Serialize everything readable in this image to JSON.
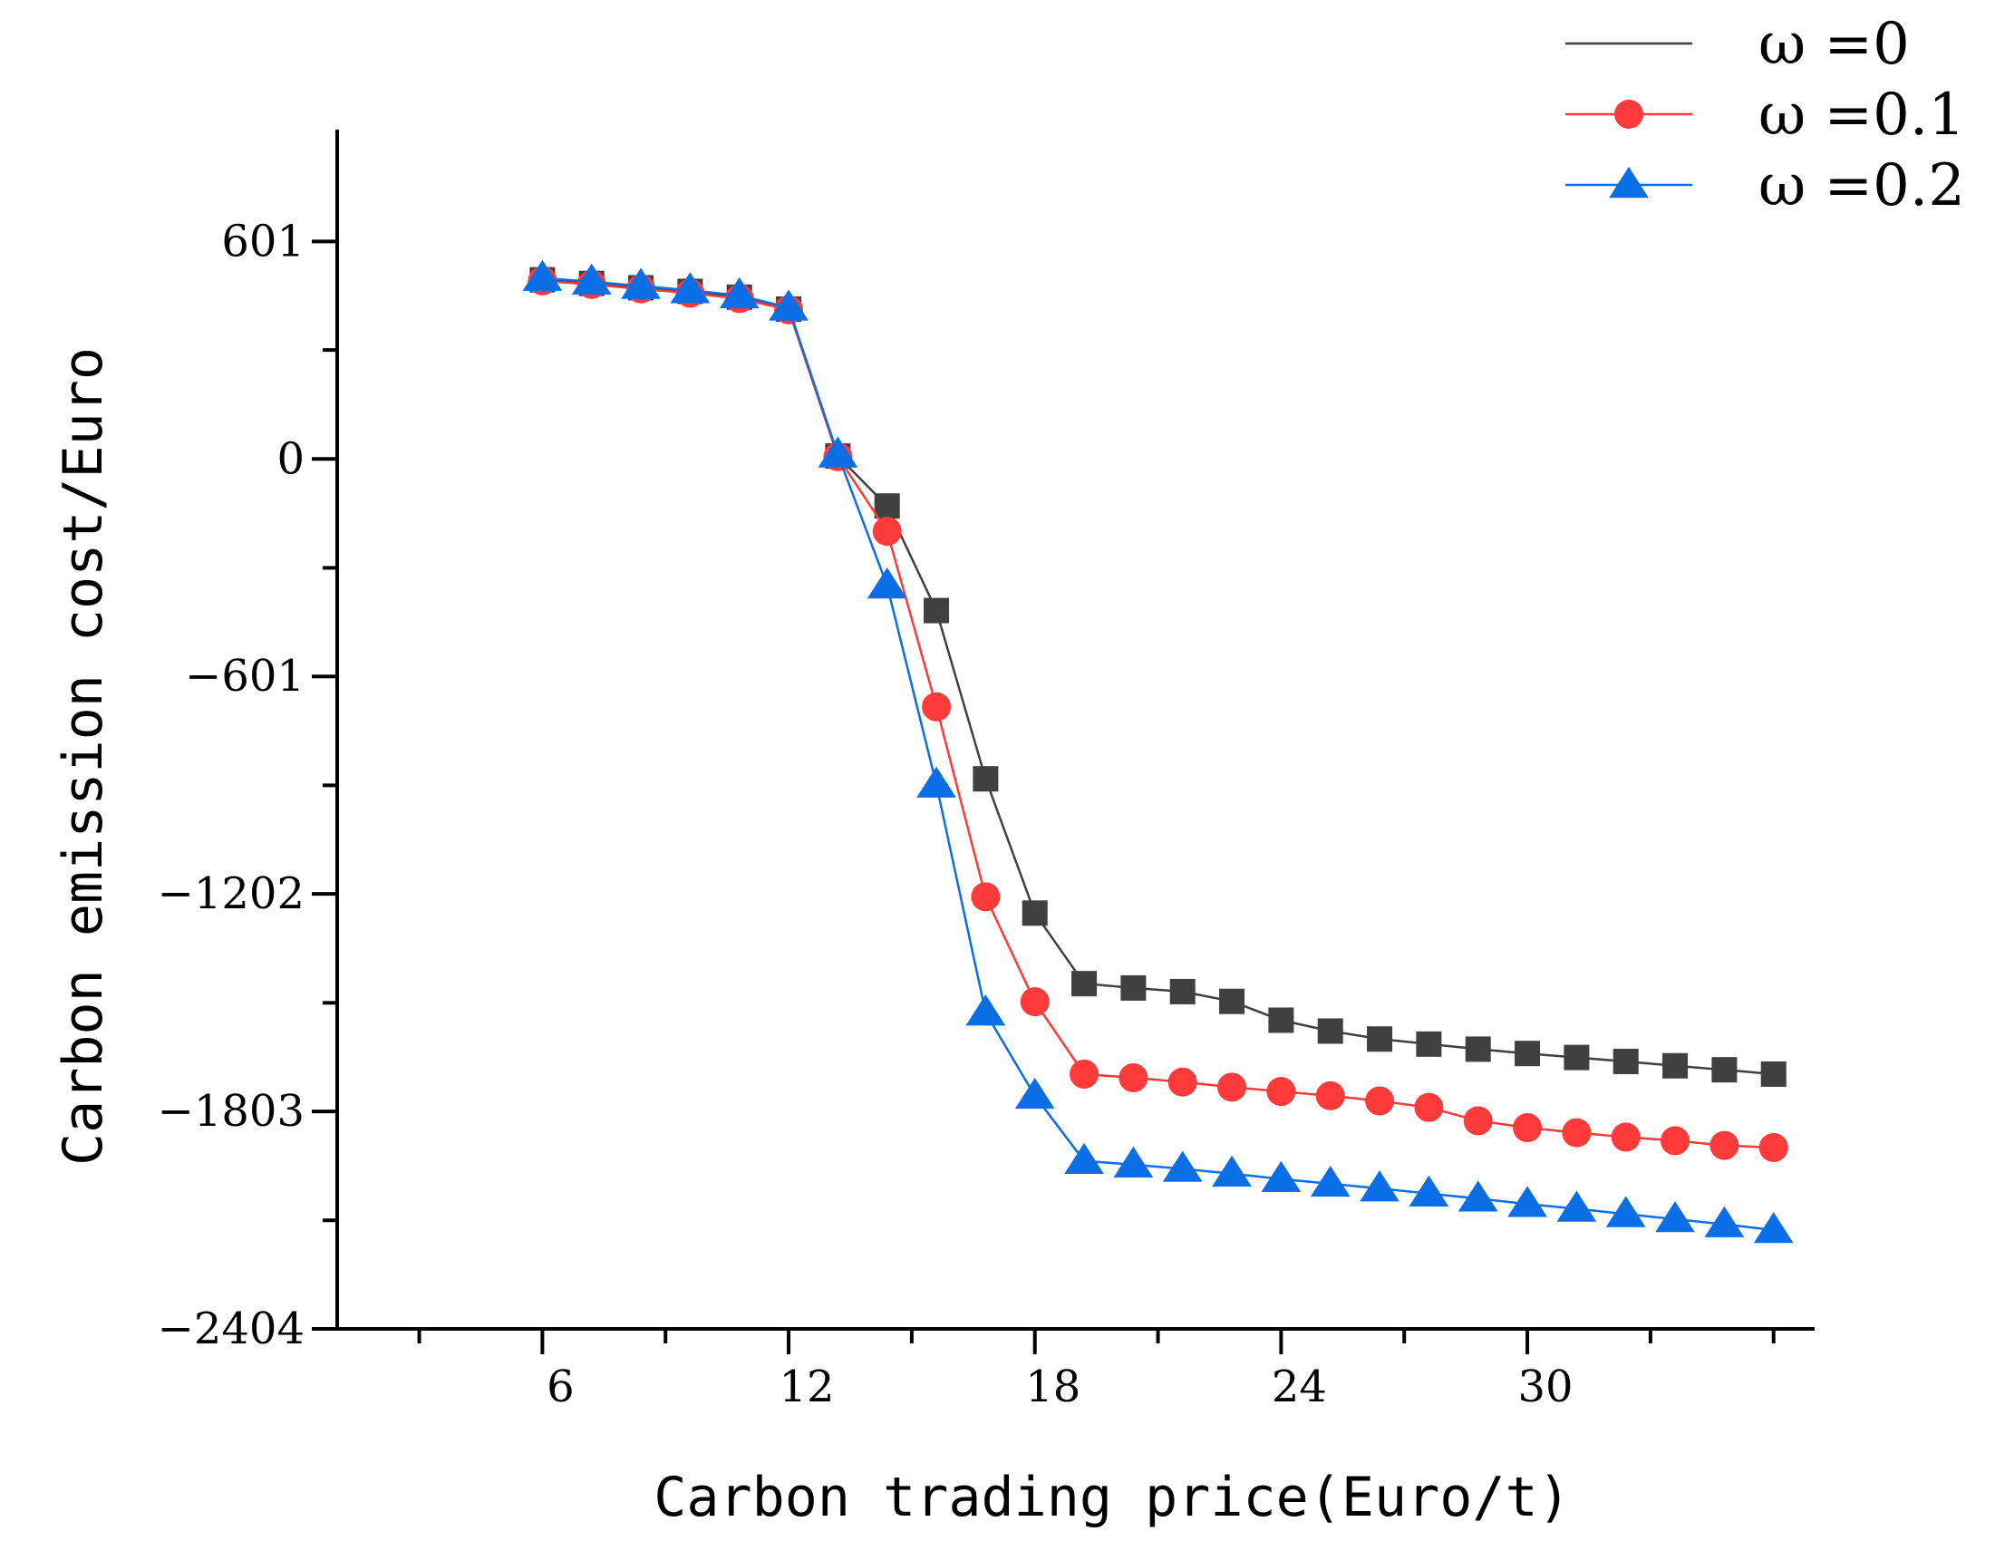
{
  "chart_data": {
    "type": "line",
    "title": "",
    "xlabel": "Carbon trading price(Euro/t)",
    "ylabel": "Carbon emission cost/Euro",
    "xlim": [
      1,
      37
    ],
    "ylim": [
      -2404,
      910
    ],
    "x_major_ticks": [
      6,
      12,
      18,
      24,
      30
    ],
    "x_tick_labels": [
      "6",
      "12",
      "18",
      "24",
      "30"
    ],
    "x_minor_ticks": [
      3,
      9,
      15,
      21,
      27,
      33,
      36
    ],
    "y_major_ticks": [
      -2404,
      -1803,
      -1202,
      -601,
      0,
      601
    ],
    "y_tick_labels": [
      "−2404",
      "−1803",
      "−1202",
      "−601",
      "0",
      "601"
    ],
    "y_minor_ticks": [
      -2104,
      -1503,
      -902,
      -301,
      301
    ],
    "grid": false,
    "legend_position": "top-right",
    "x": [
      6,
      7.2,
      8.4,
      9.6,
      10.8,
      12,
      13.2,
      14.4,
      15.6,
      16.8,
      18,
      19.2,
      20.4,
      21.6,
      22.8,
      24,
      25.2,
      26.4,
      27.6,
      28.8,
      30,
      31.2,
      32.4,
      33.6,
      34.8,
      36
    ],
    "series": [
      {
        "name": "ω =0",
        "color": "#404040",
        "marker": "none",
        "values": [
          495,
          485,
          473,
          463,
          447,
          414,
          8,
          -130,
          -419,
          -884,
          -1255,
          -1450,
          -1462,
          -1472,
          -1499,
          -1551,
          -1581,
          -1603,
          -1617,
          -1631,
          -1643,
          -1654,
          -1665,
          -1677,
          -1688,
          -1700
        ]
      },
      {
        "name": "ω =0.1",
        "color": "#ff3a3a",
        "marker": "circle",
        "values": [
          492,
          482,
          470,
          458,
          443,
          412,
          6,
          -200,
          -685,
          -1210,
          -1500,
          -1700,
          -1710,
          -1722,
          -1736,
          -1748,
          -1760,
          -1774,
          -1792,
          -1829,
          -1848,
          -1862,
          -1874,
          -1884,
          -1897,
          -1903
        ]
      },
      {
        "name": "ω =0.2",
        "color": "#0a6fe6",
        "marker": "triangle",
        "values": [
          500,
          490,
          478,
          466,
          452,
          418,
          12,
          -350,
          -900,
          -1530,
          -1760,
          -1940,
          -1950,
          -1962,
          -1975,
          -1990,
          -2003,
          -2016,
          -2030,
          -2044,
          -2059,
          -2072,
          -2087,
          -2101,
          -2115,
          -2131
        ]
      }
    ]
  }
}
